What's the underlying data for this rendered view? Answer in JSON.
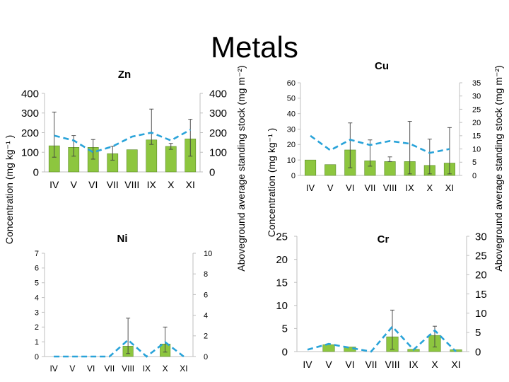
{
  "page": {
    "title": "Metals",
    "left_axis_label": "Concentration (mg kg⁻¹ )",
    "mid_left_axis_label": "Aboveground average standing stock (mg m⁻²)",
    "mid_right_axis_label": "Concentration (mg kg⁻¹ )",
    "right_axis_label": "Aboveground average standing stock (mg m⁻²)"
  },
  "colors": {
    "bar_fill": "#8dc63f",
    "bar_stroke": "#5c8a2a",
    "line": "#29a3d9",
    "axis": "#7f7f7f",
    "text": "#000000",
    "small_tick_text": "#333333"
  },
  "chart_data": [
    {
      "id": "zn",
      "type": "bar",
      "title": "Zn",
      "categories": [
        "IV",
        "V",
        "VI",
        "VII",
        "VIII",
        "IX",
        "X",
        "XI"
      ],
      "values": [
        133,
        125,
        125,
        93,
        113,
        163,
        130,
        168
      ],
      "error_high": [
        305,
        185,
        165,
        130,
        113,
        320,
        145,
        268
      ],
      "error_low": [
        75,
        80,
        65,
        60,
        113,
        140,
        115,
        80
      ],
      "line_values": [
        185,
        160,
        100,
        130,
        180,
        200,
        160,
        215
      ],
      "ylim_left": [
        0,
        400
      ],
      "yticks_left": [
        0,
        100,
        200,
        300,
        400
      ],
      "ylim_right": [
        0,
        400
      ],
      "yticks_right": [
        0,
        100,
        200,
        300,
        400
      ]
    },
    {
      "id": "cu",
      "type": "bar",
      "title": "Cu",
      "categories": [
        "IV",
        "V",
        "VI",
        "VII",
        "VIII",
        "IX",
        "X",
        "XI"
      ],
      "values": [
        10,
        7,
        16.5,
        9.5,
        9,
        9,
        6.5,
        8
      ],
      "error_high": [
        10,
        7,
        34,
        23,
        12,
        35,
        23.5,
        31
      ],
      "error_low": [
        10,
        7,
        5,
        6,
        9,
        1,
        1,
        1
      ],
      "line_values": [
        15,
        9.5,
        13.5,
        11.5,
        13,
        12,
        8.5,
        10
      ],
      "ylim_left": [
        0,
        60
      ],
      "yticks_left": [
        0,
        10,
        20,
        30,
        40,
        50,
        60
      ],
      "ylim_right": [
        0,
        35
      ],
      "yticks_right": [
        0,
        5,
        10,
        15,
        20,
        25,
        30,
        35
      ]
    },
    {
      "id": "ni",
      "type": "bar",
      "title": "Ni",
      "categories": [
        "IV",
        "V",
        "VI",
        "VII",
        "VIII",
        "IX",
        "X",
        "XI"
      ],
      "values": [
        0,
        0,
        0,
        0,
        0.7,
        0,
        0.85,
        0
      ],
      "error_high": [
        0,
        0,
        0,
        0,
        2.6,
        0,
        2.0,
        0
      ],
      "error_low": [
        0,
        0,
        0,
        0,
        0.2,
        0,
        0.3,
        0
      ],
      "line_values": [
        0,
        0,
        0,
        0,
        1.6,
        0,
        1.4,
        0
      ],
      "ylim_left": [
        0,
        7
      ],
      "yticks_left": [
        0,
        1,
        2,
        3,
        4,
        5,
        6,
        7
      ],
      "ylim_right": [
        0,
        10
      ],
      "yticks_right": [
        0,
        2,
        4,
        6,
        8,
        10
      ]
    },
    {
      "id": "cr",
      "type": "bar",
      "title": "Cr",
      "categories": [
        "IV",
        "V",
        "VI",
        "VII",
        "VIII",
        "IX",
        "X",
        "XI"
      ],
      "values": [
        0,
        1.5,
        1.0,
        0,
        3.2,
        0.5,
        3.5,
        0.4
      ],
      "error_high": [
        0,
        1.5,
        1.0,
        0,
        9,
        0.5,
        5.5,
        0.4
      ],
      "error_low": [
        0,
        1.5,
        1.0,
        0,
        0.5,
        0.5,
        1.0,
        0.4
      ],
      "line_values": [
        0.5,
        2.0,
        1.0,
        0,
        6.5,
        0.5,
        5.5,
        0
      ],
      "ylim_left": [
        0,
        25
      ],
      "yticks_left": [
        0,
        5,
        10,
        15,
        20,
        25
      ],
      "ylim_right": [
        0,
        30
      ],
      "yticks_right": [
        0,
        5,
        10,
        15,
        20,
        25,
        30
      ]
    }
  ]
}
